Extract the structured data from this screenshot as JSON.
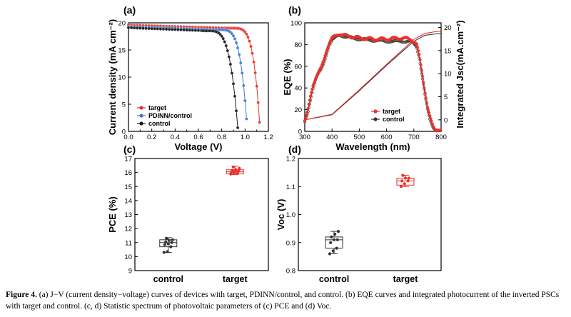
{
  "chart_data": [
    {
      "panel": "(a)",
      "type": "line",
      "xlabel": "Voltage (V)",
      "ylabel": "Current density (mA cm⁻²)",
      "xlim": [
        0.0,
        1.2
      ],
      "ylim": [
        0,
        20
      ],
      "xticks": [
        0.0,
        0.1,
        0.2,
        0.3,
        0.4,
        0.5,
        0.6,
        0.7,
        0.8,
        0.9,
        1.0,
        1.1,
        1.2
      ],
      "xtick_labels": [
        "0.0",
        "",
        "0.2",
        "",
        "0.4",
        "",
        "0.6",
        "",
        "0.8",
        "",
        "1.0",
        "",
        "1.2"
      ],
      "yticks": [
        0,
        5,
        10,
        15,
        20
      ],
      "legend": [
        "target",
        "PDINN/control",
        "control"
      ],
      "series": [
        {
          "name": "target",
          "color": "#e8322b",
          "jsc": 19.6,
          "voc": 1.13,
          "knee": 0.88,
          "n": 4.5
        },
        {
          "name": "PDINN/control",
          "color": "#3a78d8",
          "jsc": 19.3,
          "voc": 1.02,
          "knee": 0.77,
          "n": 4.3
        },
        {
          "name": "control",
          "color": "#1a1a1a",
          "jsc": 19.1,
          "voc": 0.94,
          "knee": 0.67,
          "n": 4.0
        }
      ]
    },
    {
      "panel": "(b)",
      "type": "line",
      "xlabel": "Wavelength (nm)",
      "ylabel": "EQE (%)",
      "ylabel_right": "Integrated Jsc(mA.cm⁻²)",
      "xlim": [
        300,
        800
      ],
      "ylim": [
        0,
        100
      ],
      "ylim_right": [
        -2.5,
        21
      ],
      "xticks": [
        300,
        400,
        500,
        600,
        700,
        800
      ],
      "yticks": [
        0,
        20,
        40,
        60,
        80,
        100
      ],
      "yticks_right": [
        0,
        5,
        10,
        15,
        20
      ],
      "legend": [
        "target",
        "control"
      ],
      "eqe_wavelength": [
        300,
        310,
        320,
        330,
        340,
        350,
        360,
        370,
        380,
        390,
        400,
        410,
        420,
        430,
        450,
        480,
        500,
        550,
        600,
        650,
        690,
        710,
        720,
        730,
        740,
        750,
        760,
        770,
        780,
        790,
        800
      ],
      "series": [
        {
          "name": "target",
          "color": "#e8322b",
          "eqe": [
            10,
            18,
            30,
            42,
            50,
            55,
            58,
            65,
            75,
            82,
            86,
            87,
            89,
            90,
            88,
            87,
            86,
            85,
            85,
            86,
            85,
            80,
            70,
            55,
            38,
            22,
            12,
            5,
            2,
            1,
            0
          ],
          "jsc_wavelength": [
            300,
            400,
            500,
            600,
            700,
            740,
            780,
            800
          ],
          "jsc": [
            0,
            1.2,
            6.5,
            12,
            17.4,
            18.7,
            19.1,
            19.2
          ]
        },
        {
          "name": "control",
          "color": "#333333",
          "eqe": [
            9,
            16,
            28,
            40,
            48,
            53,
            57,
            63,
            72,
            80,
            84,
            86,
            88,
            89,
            87,
            86,
            85,
            84,
            83,
            83,
            83,
            78,
            68,
            52,
            35,
            20,
            10,
            4,
            2,
            1,
            0
          ],
          "jsc_wavelength": [
            300,
            400,
            500,
            600,
            700,
            740,
            780,
            800
          ],
          "jsc": [
            0,
            1.1,
            6.3,
            11.8,
            17.0,
            18.3,
            18.6,
            18.7
          ]
        }
      ]
    },
    {
      "panel": "(c)",
      "type": "box",
      "ylabel": "PCE (%)",
      "ylim": [
        9,
        17
      ],
      "yticks": [
        9,
        10,
        11,
        12,
        13,
        14,
        15,
        16,
        17
      ],
      "categories": [
        "control",
        "target"
      ],
      "boxes": [
        {
          "name": "control",
          "color": "#333333",
          "q1": 10.7,
          "median": 11.0,
          "q3": 11.2,
          "whisker_low": 10.3,
          "whisker_high": 11.35,
          "points": [
            10.3,
            10.35,
            10.7,
            10.85,
            10.9,
            11.0,
            11.05,
            11.15,
            11.2,
            11.3
          ]
        },
        {
          "name": "target",
          "color": "#e8322b",
          "q1": 15.9,
          "median": 16.05,
          "q3": 16.2,
          "whisker_low": 15.85,
          "whisker_high": 16.45,
          "points": [
            15.9,
            15.95,
            16.0,
            16.05,
            16.1,
            16.1,
            16.15,
            16.2,
            16.3,
            16.4
          ]
        }
      ]
    },
    {
      "panel": "(d)",
      "type": "box",
      "ylabel": "Voc (V)",
      "ylim": [
        0.8,
        1.2
      ],
      "yticks": [
        0.8,
        0.9,
        1.0,
        1.1,
        1.2
      ],
      "ytick_labels": [
        "0.8",
        "0.9",
        "1.0",
        "1.1",
        "1.2"
      ],
      "categories": [
        "control",
        "target"
      ],
      "boxes": [
        {
          "name": "control",
          "color": "#333333",
          "q1": 0.88,
          "median": 0.91,
          "q3": 0.92,
          "whisker_low": 0.86,
          "whisker_high": 0.94,
          "points": [
            0.86,
            0.87,
            0.88,
            0.9,
            0.91,
            0.91,
            0.92,
            0.93,
            0.94
          ]
        },
        {
          "name": "target",
          "color": "#e8322b",
          "q1": 1.105,
          "median": 1.12,
          "q3": 1.13,
          "whisker_low": 1.1,
          "whisker_high": 1.14,
          "points": [
            1.1,
            1.11,
            1.12,
            1.12,
            1.13,
            1.13,
            1.14
          ]
        }
      ]
    }
  ],
  "caption": {
    "label": "Figure 4.",
    "text": " (a) J−V (current density−voltage) curves of devices with target, PDINN/control, and control. (b) EQE curves and integrated photocurrent of the inverted PSCs with target and control. (c, d) Statistic spectrum of photovoltaic parameters of (c) PCE and (d) Voc."
  }
}
